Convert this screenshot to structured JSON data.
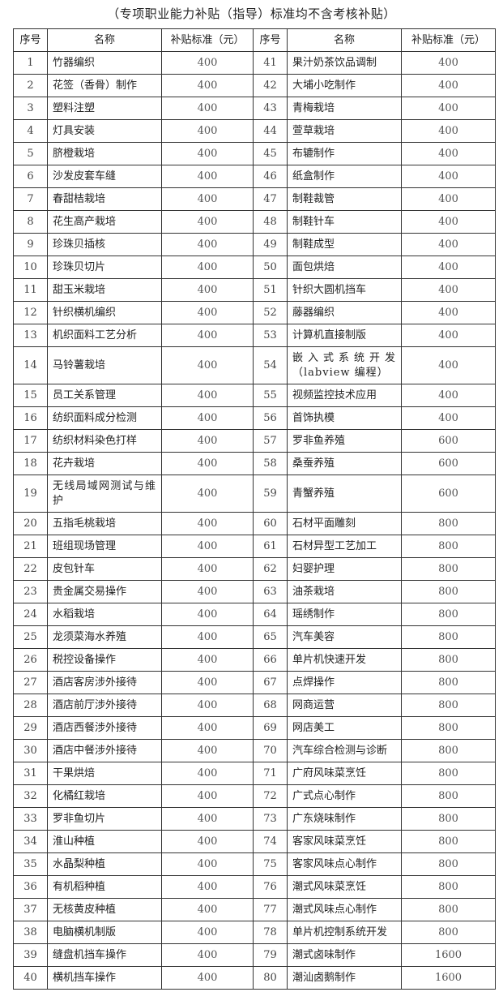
{
  "title": "（专项职业能力补贴（指导）标准均不含考核补贴）",
  "headers": [
    "序号",
    "名称",
    "补贴标准（元）",
    "序号",
    "名称",
    "补贴标准（元）"
  ],
  "rows": [
    [
      "1",
      "竹器编织",
      "400",
      "41",
      "果汁奶茶饮品调制",
      "400"
    ],
    [
      "2",
      "花签（香骨）制作",
      "400",
      "42",
      "大埔小吃制作",
      "400"
    ],
    [
      "3",
      "塑料注塑",
      "400",
      "43",
      "青梅栽培",
      "400"
    ],
    [
      "4",
      "灯具安装",
      "400",
      "44",
      "萱草栽培",
      "400"
    ],
    [
      "5",
      "脐橙栽培",
      "400",
      "45",
      "布辘制作",
      "400"
    ],
    [
      "6",
      "沙发皮套车缝",
      "400",
      "46",
      "纸盒制作",
      "400"
    ],
    [
      "7",
      "春甜桔栽培",
      "400",
      "47",
      "制鞋裁管",
      "400"
    ],
    [
      "8",
      "花生高产栽培",
      "400",
      "48",
      "制鞋针车",
      "400"
    ],
    [
      "9",
      "珍珠贝插核",
      "400",
      "49",
      "制鞋成型",
      "400"
    ],
    [
      "10",
      "珍珠贝切片",
      "400",
      "50",
      "面包烘焙",
      "400"
    ],
    [
      "11",
      "甜玉米栽培",
      "400",
      "51",
      "针织大圆机挡车",
      "400"
    ],
    [
      "12",
      "针织横机编织",
      "400",
      "52",
      "藤器编织",
      "400"
    ],
    [
      "13",
      "机织面料工艺分析",
      "400",
      "53",
      "计算机直接制版",
      "400"
    ],
    [
      "14",
      "马铃薯栽培",
      "400",
      "54",
      "嵌入式系统开发（labview 编程）",
      "400"
    ],
    [
      "15",
      "员工关系管理",
      "400",
      "55",
      "视频监控技术应用",
      "400"
    ],
    [
      "16",
      "纺织面料成分检测",
      "400",
      "56",
      "首饰执模",
      "400"
    ],
    [
      "17",
      "纺织材料染色打样",
      "400",
      "57",
      "罗非鱼养殖",
      "600"
    ],
    [
      "18",
      "花卉栽培",
      "400",
      "58",
      "桑蚕养殖",
      "600"
    ],
    [
      "19",
      "无线局域网测试与维护",
      "400",
      "59",
      "青蟹养殖",
      "600"
    ],
    [
      "20",
      "五指毛桃栽培",
      "400",
      "60",
      "石材平面雕刻",
      "800"
    ],
    [
      "21",
      "班组现场管理",
      "400",
      "61",
      "石材异型工艺加工",
      "800"
    ],
    [
      "22",
      "皮包针车",
      "400",
      "62",
      "妇婴护理",
      "800"
    ],
    [
      "23",
      "贵金属交易操作",
      "400",
      "63",
      "油茶栽培",
      "800"
    ],
    [
      "24",
      "水稻栽培",
      "400",
      "64",
      "瑶绣制作",
      "800"
    ],
    [
      "25",
      "龙须菜海水养殖",
      "400",
      "65",
      "汽车美容",
      "800"
    ],
    [
      "26",
      "税控设备操作",
      "400",
      "66",
      "单片机快速开发",
      "800"
    ],
    [
      "27",
      "酒店客房涉外接待",
      "400",
      "67",
      "点焊操作",
      "800"
    ],
    [
      "28",
      "酒店前厅涉外接待",
      "400",
      "68",
      "网商运营",
      "800"
    ],
    [
      "29",
      "酒店西餐涉外接待",
      "400",
      "69",
      "网店美工",
      "800"
    ],
    [
      "30",
      "酒店中餐涉外接待",
      "400",
      "70",
      "汽车综合检测与诊断",
      "800"
    ],
    [
      "31",
      "干果烘焙",
      "400",
      "71",
      "广府风味菜烹饪",
      "800"
    ],
    [
      "32",
      "化橘红栽培",
      "400",
      "72",
      "广式点心制作",
      "800"
    ],
    [
      "33",
      "罗非鱼切片",
      "400",
      "73",
      "广东烧味制作",
      "800"
    ],
    [
      "34",
      "淮山种植",
      "400",
      "74",
      "客家风味菜烹饪",
      "800"
    ],
    [
      "35",
      "水晶梨种植",
      "400",
      "75",
      "客家风味点心制作",
      "800"
    ],
    [
      "36",
      "有机稻种植",
      "400",
      "76",
      "潮式风味菜烹饪",
      "800"
    ],
    [
      "37",
      "无核黄皮种植",
      "400",
      "77",
      "潮式风味点心制作",
      "800"
    ],
    [
      "38",
      "电脑横机制版",
      "400",
      "78",
      "单片机控制系统开发",
      "800"
    ],
    [
      "39",
      "缝盘机挡车操作",
      "400",
      "79",
      "潮式卤味制作",
      "1600"
    ],
    [
      "40",
      "横机挡车操作",
      "400",
      "80",
      "潮汕卤鹅制作",
      "1600"
    ]
  ]
}
